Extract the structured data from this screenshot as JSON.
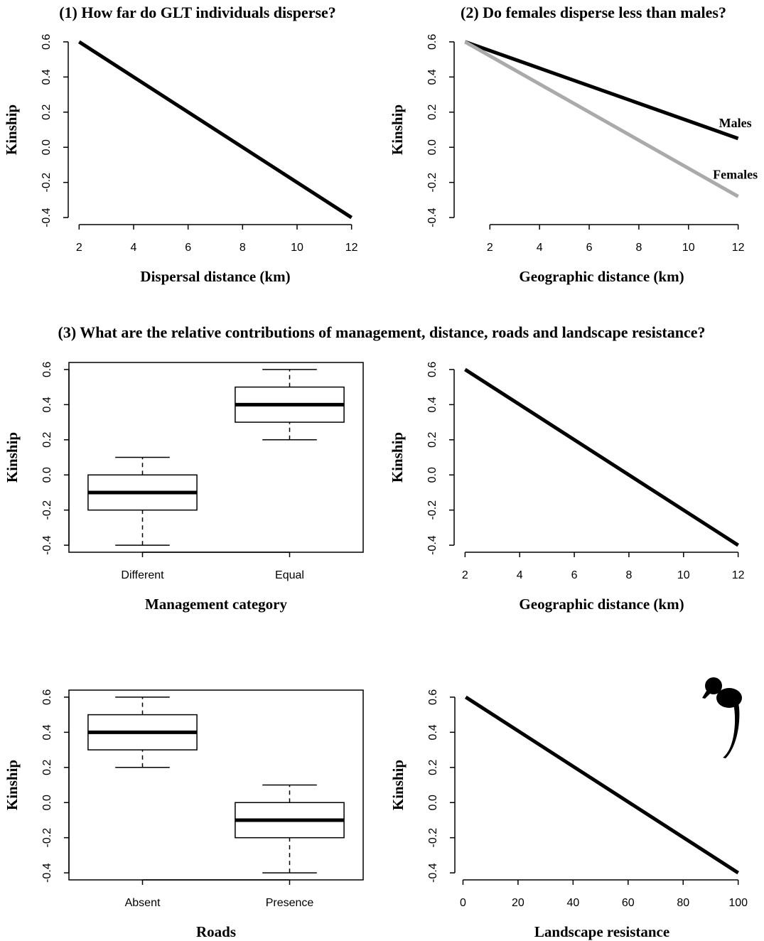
{
  "section_title": "(3) What are the relative contributions of management, distance, roads and landscape resistance?",
  "chart_data": [
    {
      "type": "line",
      "title": "(1) How far do GLT individuals disperse?",
      "x_label": "Dispersal distance (km)",
      "y_label": "Kinship",
      "series": [
        {
          "color": "#000000",
          "x": [
            2,
            12
          ],
          "values": [
            0.6,
            -0.4
          ]
        }
      ],
      "xlim": [
        1.6,
        12.4
      ],
      "ylim": [
        -0.44,
        0.64
      ],
      "xticks": [
        2,
        4,
        6,
        8,
        10,
        12
      ],
      "yticks": [
        -0.4,
        -0.2,
        {
          "value": 0,
          "label": "0.0"
        },
        0.2,
        0.4,
        0.6
      ]
    },
    {
      "type": "line",
      "title": "(2) Do females disperse less than males?",
      "x_label": "Geographic distance (km)",
      "y_label": "Kinship",
      "series": [
        {
          "name": "Males",
          "color": "#000000",
          "x": [
            1,
            12
          ],
          "values": [
            0.6,
            0.05
          ]
        },
        {
          "name": "Females",
          "color": "#aaaaaa",
          "x": [
            1,
            12
          ],
          "values": [
            0.6,
            -0.28
          ]
        }
      ],
      "xlim": [
        0.56,
        12.44
      ],
      "ylim": [
        -0.44,
        0.64
      ],
      "xticks": [
        2,
        4,
        6,
        8,
        10,
        12
      ],
      "yticks": [
        -0.4,
        -0.2,
        {
          "value": 0,
          "label": "0.0"
        },
        0.2,
        0.4,
        0.6
      ]
    },
    {
      "type": "box",
      "x_label": "Management category",
      "y_label": "Kinship",
      "categories": [
        "Different",
        "Equal"
      ],
      "boxes": [
        {
          "whislo": -0.4,
          "q1": -0.2,
          "med": -0.1,
          "q3": 0,
          "whishi": 0.1
        },
        {
          "whislo": 0.2,
          "q1": 0.3,
          "med": 0.4,
          "q3": 0.5,
          "whishi": 0.6
        }
      ],
      "ylim": [
        -0.44,
        0.64
      ],
      "yticks": [
        -0.4,
        -0.2,
        {
          "value": 0,
          "label": "0.0"
        },
        0.2,
        0.4,
        0.6
      ]
    },
    {
      "type": "line",
      "x_label": "Geographic distance (km)",
      "y_label": "Kinship",
      "series": [
        {
          "color": "#000000",
          "x": [
            2,
            12
          ],
          "values": [
            0.6,
            -0.4
          ]
        }
      ],
      "xlim": [
        1.6,
        12.4
      ],
      "ylim": [
        -0.44,
        0.64
      ],
      "xticks": [
        2,
        4,
        6,
        8,
        10,
        12
      ],
      "yticks": [
        -0.4,
        -0.2,
        {
          "value": 0,
          "label": "0.0"
        },
        0.2,
        0.4,
        0.6
      ]
    },
    {
      "type": "box",
      "x_label": "Roads",
      "y_label": "Kinship",
      "categories": [
        "Absent",
        "Presence"
      ],
      "boxes": [
        {
          "whislo": 0.2,
          "q1": 0.3,
          "med": 0.4,
          "q3": 0.5,
          "whishi": 0.6
        },
        {
          "whislo": -0.4,
          "q1": -0.2,
          "med": -0.1,
          "q3": 0,
          "whishi": 0.1
        }
      ],
      "ylim": [
        -0.44,
        0.64
      ],
      "yticks": [
        -0.4,
        -0.2,
        {
          "value": 0,
          "label": "0.0"
        },
        0.2,
        0.4,
        0.6
      ]
    },
    {
      "type": "line",
      "x_label": "Landscape resistance",
      "y_label": "Kinship",
      "series": [
        {
          "color": "#000000",
          "x": [
            1,
            100
          ],
          "values": [
            0.6,
            -0.4
          ]
        }
      ],
      "xlim": [
        -2.96,
        103.96
      ],
      "ylim": [
        -0.44,
        0.64
      ],
      "xticks": [
        0,
        20,
        40,
        60,
        80,
        100
      ],
      "yticks": [
        -0.4,
        -0.2,
        {
          "value": 0,
          "label": "0.0"
        },
        0.2,
        0.4,
        0.6
      ]
    }
  ]
}
